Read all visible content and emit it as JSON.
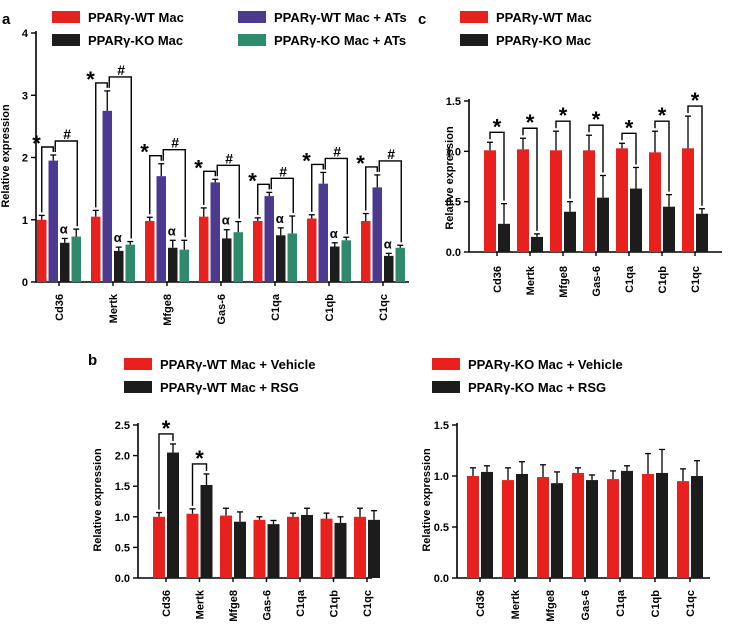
{
  "colors": {
    "wt": "#e8211e",
    "ko": "#1c1c1c",
    "wt_ats": "#4b3a8f",
    "ko_ats": "#2f8a6c"
  },
  "chart_data": [
    {
      "id": "a",
      "panel_label": "a",
      "type": "bar",
      "ylabel": "Relative expression",
      "ylim": [
        0,
        4
      ],
      "yticks": [
        "0",
        "1",
        "2",
        "3",
        "4"
      ],
      "categories": [
        "Cd36",
        "Mertk",
        "Mfge8",
        "Gas-6",
        "C1qa",
        "C1qb",
        "C1qc"
      ],
      "series": [
        {
          "name": "PPARγ-WT Mac",
          "color": "wt",
          "values": [
            1.0,
            1.05,
            0.98,
            1.05,
            0.98,
            1.02,
            0.98
          ],
          "errors": [
            0.07,
            0.1,
            0.06,
            0.14,
            0.05,
            0.06,
            0.12
          ]
        },
        {
          "name": "PPARγ-WT Mac + ATs",
          "color": "wt_ats",
          "values": [
            1.95,
            2.75,
            1.7,
            1.6,
            1.38,
            1.58,
            1.52
          ],
          "errors": [
            0.09,
            0.32,
            0.2,
            0.05,
            0.06,
            0.18,
            0.2
          ]
        },
        {
          "name": "PPARγ-KO Mac",
          "color": "ko",
          "values": [
            0.63,
            0.5,
            0.55,
            0.7,
            0.75,
            0.57,
            0.42
          ],
          "errors": [
            0.07,
            0.06,
            0.12,
            0.14,
            0.12,
            0.06,
            0.04
          ]
        },
        {
          "name": "PPARγ-KO Mac + ATs",
          "color": "ko_ats",
          "values": [
            0.73,
            0.6,
            0.52,
            0.8,
            0.78,
            0.67,
            0.55
          ],
          "errors": [
            0.12,
            0.05,
            0.15,
            0.17,
            0.28,
            0.05,
            0.04
          ]
        }
      ],
      "legend": [
        {
          "label": "PPARγ-WT Mac",
          "color": "wt"
        },
        {
          "label": "PPARγ-KO Mac",
          "color": "ko"
        },
        {
          "label": "PPARγ-WT Mac + ATs",
          "color": "wt_ats"
        },
        {
          "label": "PPARγ-KO Mac + ATs",
          "color": "ko_ats"
        }
      ],
      "annotations": {
        "star": "*",
        "hash": "#",
        "alpha": "α"
      }
    },
    {
      "id": "c",
      "panel_label": "c",
      "type": "bar",
      "ylabel": "Relative expression",
      "ylim": [
        0,
        1.5
      ],
      "yticks": [
        "0.0",
        "0.5",
        "1.0",
        "1.5"
      ],
      "categories": [
        "Cd36",
        "Mertk",
        "Mfge8",
        "Gas-6",
        "C1qa",
        "C1qb",
        "C1qc"
      ],
      "series": [
        {
          "name": "PPARγ-WT Mac",
          "color": "wt",
          "values": [
            1.01,
            1.02,
            1.01,
            1.01,
            1.03,
            0.99,
            1.03
          ],
          "errors": [
            0.08,
            0.11,
            0.19,
            0.15,
            0.05,
            0.21,
            0.32
          ]
        },
        {
          "name": "PPARγ-KO Mac",
          "color": "ko",
          "values": [
            0.28,
            0.15,
            0.4,
            0.54,
            0.63,
            0.45,
            0.38
          ],
          "errors": [
            0.2,
            0.03,
            0.1,
            0.22,
            0.21,
            0.12,
            0.05
          ]
        }
      ],
      "legend": [
        {
          "label": "PPARγ-WT Mac",
          "color": "wt"
        },
        {
          "label": "PPARγ-KO Mac",
          "color": "ko"
        }
      ],
      "annotations": {
        "star": "*"
      }
    },
    {
      "id": "b1",
      "panel_label": "b",
      "type": "bar",
      "ylabel": "Relative expression",
      "ylim": [
        0,
        2.5
      ],
      "yticks": [
        "0.0",
        "0.5",
        "1.0",
        "1.5",
        "2.0",
        "2.5"
      ],
      "categories": [
        "Cd36",
        "Mertk",
        "Mfge8",
        "Gas-6",
        "C1qa",
        "C1qb",
        "C1qc"
      ],
      "series": [
        {
          "name": "PPARγ-WT Mac + Vehicle",
          "color": "wt",
          "values": [
            1.0,
            1.05,
            1.02,
            0.95,
            1.0,
            0.97,
            1.0
          ],
          "errors": [
            0.07,
            0.08,
            0.12,
            0.05,
            0.06,
            0.09,
            0.14
          ]
        },
        {
          "name": "PPARγ-WT Mac + RSG",
          "color": "ko",
          "values": [
            2.05,
            1.52,
            0.92,
            0.88,
            1.03,
            0.9,
            0.95
          ],
          "errors": [
            0.14,
            0.18,
            0.16,
            0.06,
            0.11,
            0.1,
            0.15
          ]
        }
      ],
      "legend": [
        {
          "label": "PPARγ-WT Mac + Vehicle",
          "color": "wt"
        },
        {
          "label": "PPARγ-WT Mac + RSG",
          "color": "ko"
        }
      ],
      "annotations": {
        "star": "*"
      }
    },
    {
      "id": "b2",
      "panel_label": "",
      "type": "bar",
      "ylabel": "Relative expression",
      "ylim": [
        0,
        1.5
      ],
      "yticks": [
        "0.0",
        "0.5",
        "1.0",
        "1.5"
      ],
      "categories": [
        "Cd36",
        "Mertk",
        "Mfge8",
        "Gas-6",
        "C1qa",
        "C1qb",
        "C1qc"
      ],
      "series": [
        {
          "name": "PPARγ-KO Mac + Vehicle",
          "color": "wt",
          "values": [
            1.0,
            0.96,
            0.99,
            1.03,
            0.97,
            1.02,
            0.95
          ],
          "errors": [
            0.08,
            0.12,
            0.12,
            0.05,
            0.08,
            0.2,
            0.12
          ]
        },
        {
          "name": "PPARγ-KO Mac + RSG",
          "color": "ko",
          "values": [
            1.04,
            1.02,
            0.93,
            0.96,
            1.05,
            1.03,
            1.0
          ],
          "errors": [
            0.06,
            0.12,
            0.11,
            0.05,
            0.05,
            0.23,
            0.15
          ]
        }
      ],
      "legend": [
        {
          "label": "PPARγ-KO Mac + Vehicle",
          "color": "wt"
        },
        {
          "label": "PPARγ-KO Mac + RSG",
          "color": "ko"
        }
      ],
      "annotations": {}
    }
  ]
}
